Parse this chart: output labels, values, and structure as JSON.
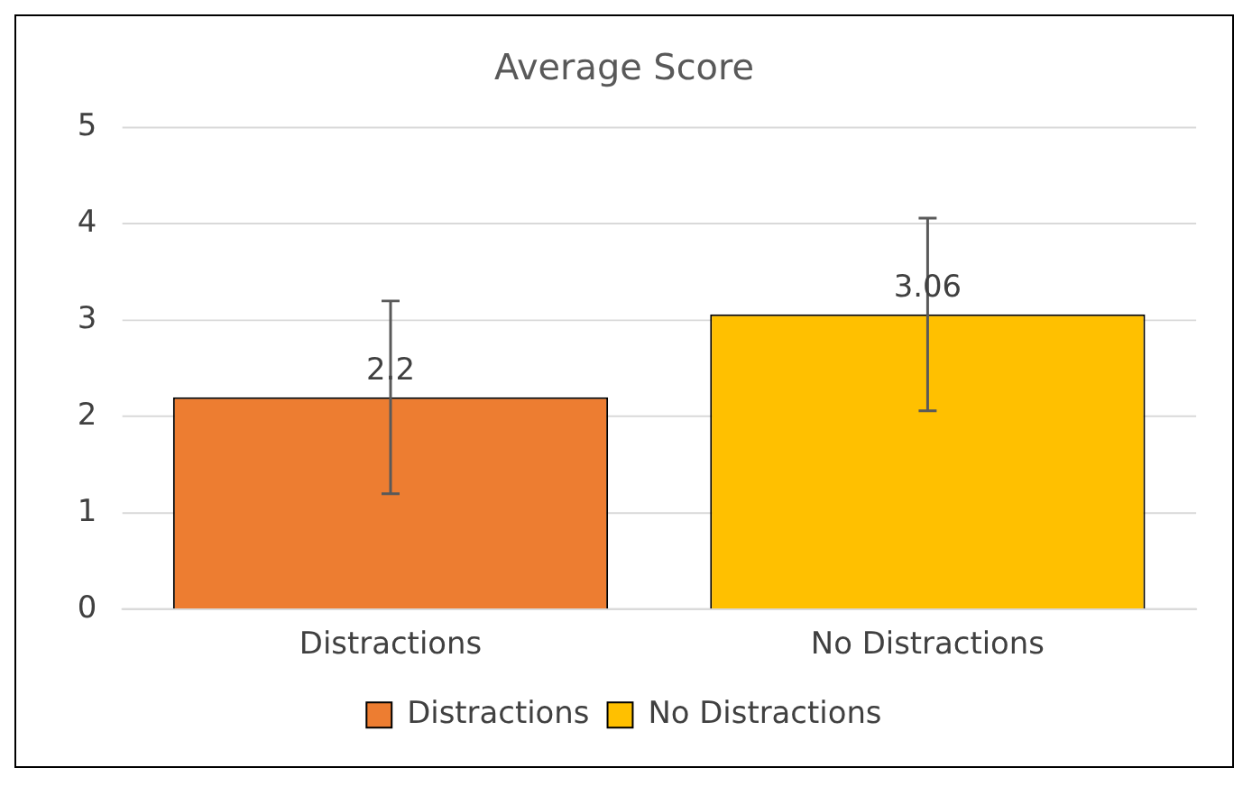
{
  "chart_data": {
    "type": "bar",
    "title": "Average Score",
    "categories": [
      "Distractions",
      "No Distractions"
    ],
    "series": [
      {
        "name": "Distractions",
        "color": "#ed7d31",
        "values": [
          2.2,
          null
        ],
        "errors": [
          1,
          null
        ]
      },
      {
        "name": "No Distractions",
        "color": "#ffc000",
        "values": [
          null,
          3.06
        ],
        "errors": [
          null,
          1
        ]
      }
    ],
    "data_labels": true,
    "ylim": [
      0,
      5
    ],
    "yticks": [
      0,
      1,
      2,
      3,
      4,
      5
    ],
    "grid": "y",
    "legend": "bottom"
  }
}
